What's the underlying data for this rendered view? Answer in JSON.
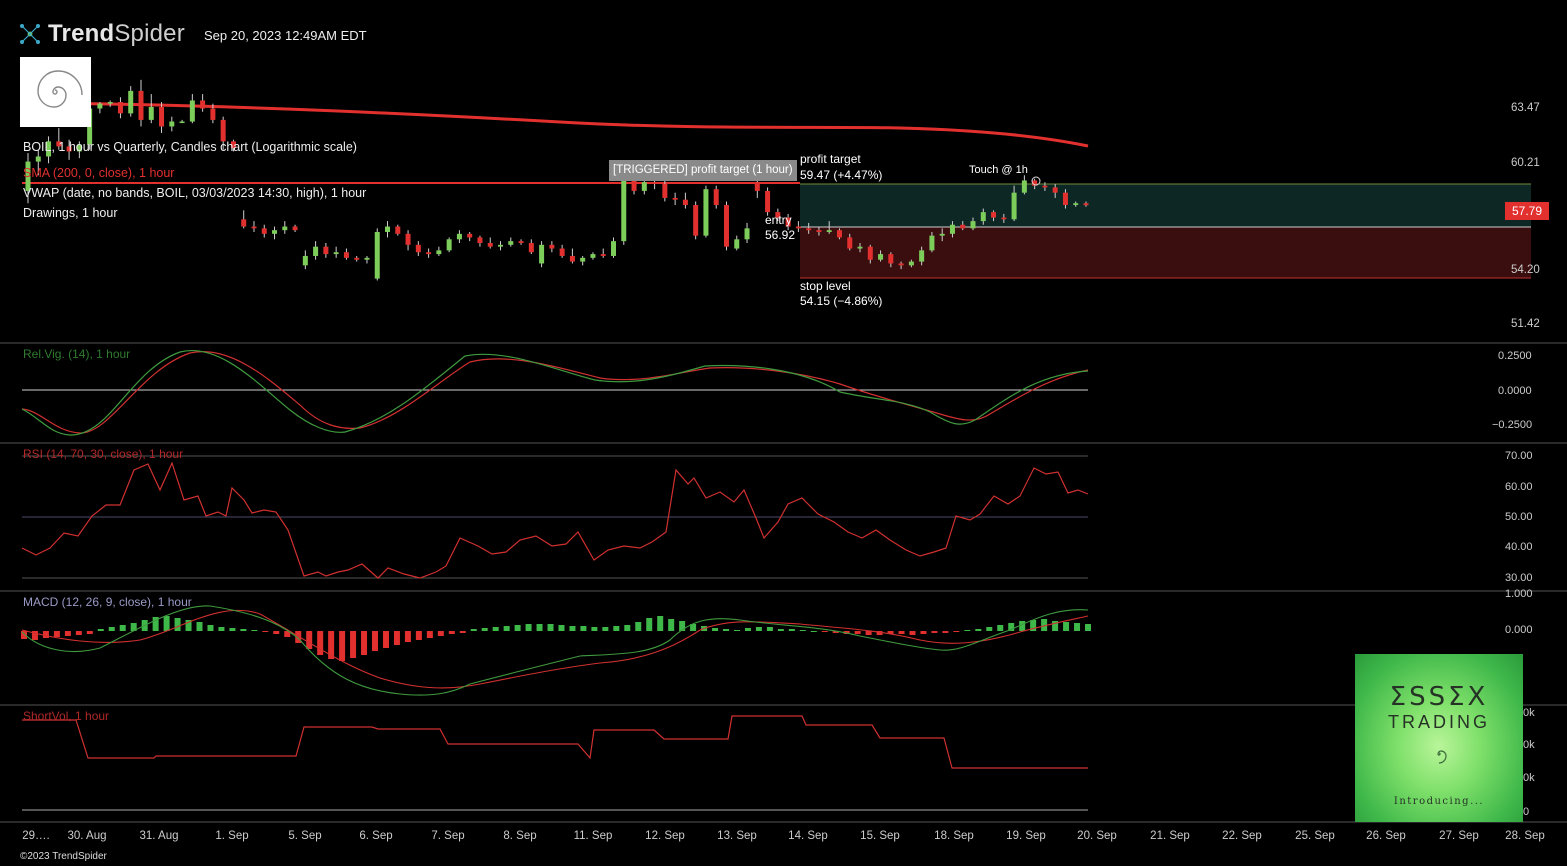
{
  "header": {
    "brand_bold": "Trend",
    "brand_light": "Spider",
    "datetime": "Sep 20, 2023 12:49AM EDT",
    "copyright": "©2023 TrendSpider"
  },
  "legend": {
    "line1": "BOIL, 1 hour vs Quarterly, Candles chart (Logarithmic scale)",
    "line2": "SMA (200, 0, close), 1 hour",
    "line3": "VWAP (date, no bands, BOIL, 03/03/2023 14:30, high), 1 hour",
    "line4": "Drawings, 1 hour"
  },
  "annotations": {
    "triggered": "[TRIGGERED] profit target (1 hour)",
    "profit_label": "profit target",
    "profit_value": "59.47 (+4.47%)",
    "touch": "Touch @ 1h",
    "entry_label": "entry",
    "entry_value": "56.92",
    "stop_label": "stop level",
    "stop_value": "54.15 (−4.86%)",
    "current_price": "57.79"
  },
  "price_axis": [
    "63.47",
    "60.21",
    "54.20",
    "51.42"
  ],
  "indicators": {
    "relvig": {
      "title": "Rel.Vig. (14), 1 hour",
      "ticks": [
        "0.2500",
        "0.0000",
        "−0.2500"
      ]
    },
    "rsi": {
      "title": "RSI (14, 70, 30, close), 1 hour",
      "ticks": [
        "70.00",
        "60.00",
        "50.00",
        "40.00",
        "30.00"
      ]
    },
    "macd": {
      "title": "MACD (12, 26, 9, close), 1 hour",
      "ticks": [
        "1.000",
        "0.000"
      ]
    },
    "shortvol": {
      "title": "ShortVol, 1 hour",
      "ticks": [
        "0k",
        "0k",
        "0k",
        "0"
      ]
    }
  },
  "ad": {
    "title": "ΣSSΣX",
    "subtitle": "TRADING",
    "intro": "Introducing..."
  },
  "colors": {
    "up": "#7ccd5a",
    "down": "#e2302f",
    "sma": "#e2302f",
    "vwap": "#e2302f",
    "profit_zone": "#0c2724",
    "stop_zone": "#3a0d0f",
    "relvig_green": "#3f9a3f",
    "relvig_red": "#d03030",
    "macd_line": "#3f9a3f",
    "signal_line": "#d03030"
  },
  "chart_data": {
    "type": "candlestick",
    "dates": [
      "29….",
      "30. Aug",
      "31. Aug",
      "1. Sep",
      "5. Sep",
      "6. Sep",
      "7. Sep",
      "8. Sep",
      "11. Sep",
      "12. Sep",
      "13. Sep",
      "14. Sep",
      "15. Sep",
      "18. Sep",
      "19. Sep",
      "20. Sep",
      "21. Sep",
      "22. Sep",
      "25. Sep",
      "26. Sep",
      "27. Sep",
      "28. Sep"
    ],
    "price_levels": {
      "profit_target": 59.47,
      "entry": 56.92,
      "stop": 54.15,
      "current": 57.79
    },
    "price_scale": "log",
    "price_ticks": [
      63.47,
      60.21,
      54.2,
      51.42
    ],
    "candles": [
      [
        58.6,
        60.8,
        57.9,
        60.3
      ],
      [
        60.3,
        61.0,
        59.5,
        60.6
      ],
      [
        60.6,
        61.8,
        60.2,
        61.5
      ],
      [
        61.5,
        62.3,
        61.0,
        61.2
      ],
      [
        61.2,
        61.6,
        60.4,
        60.9
      ],
      [
        60.9,
        61.5,
        60.5,
        61.3
      ],
      [
        61.3,
        63.9,
        61.0,
        63.5
      ],
      [
        63.5,
        63.9,
        63.2,
        63.8
      ],
      [
        63.8,
        64.0,
        63.6,
        63.9
      ],
      [
        63.9,
        64.2,
        62.9,
        63.2
      ],
      [
        63.2,
        64.9,
        63.0,
        64.6
      ],
      [
        64.6,
        65.3,
        62.4,
        62.8
      ],
      [
        62.8,
        64.4,
        62.6,
        63.6
      ],
      [
        63.6,
        63.9,
        62.0,
        62.4
      ],
      [
        62.4,
        63.0,
        62.1,
        62.7
      ],
      [
        62.7,
        62.8,
        62.6,
        62.7
      ],
      [
        62.7,
        64.4,
        62.6,
        64.0
      ],
      [
        64.0,
        64.4,
        63.3,
        63.5
      ],
      [
        63.5,
        63.8,
        62.6,
        62.8
      ],
      [
        62.8,
        63.0,
        61.0,
        61.5
      ],
      [
        61.5,
        61.6,
        60.9,
        61.1
      ],
      [
        57.0,
        57.5,
        56.5,
        56.6
      ],
      [
        56.6,
        56.9,
        56.3,
        56.5
      ],
      [
        56.5,
        56.7,
        56.0,
        56.2
      ],
      [
        56.2,
        56.6,
        55.9,
        56.4
      ],
      [
        56.4,
        56.9,
        56.2,
        56.6
      ],
      [
        56.6,
        56.7,
        56.3,
        56.4
      ],
      [
        54.5,
        55.3,
        54.3,
        55.0
      ],
      [
        55.0,
        55.8,
        54.8,
        55.5
      ],
      [
        55.5,
        55.7,
        54.9,
        55.1
      ],
      [
        55.1,
        55.5,
        54.9,
        55.2
      ],
      [
        55.2,
        55.4,
        54.8,
        54.9
      ],
      [
        54.9,
        55.0,
        54.7,
        54.8
      ],
      [
        54.8,
        55.0,
        54.6,
        54.9
      ],
      [
        53.8,
        56.5,
        53.7,
        56.3
      ],
      [
        56.3,
        56.9,
        56.0,
        56.6
      ],
      [
        56.6,
        56.7,
        56.1,
        56.2
      ],
      [
        56.2,
        56.4,
        55.3,
        55.6
      ],
      [
        55.6,
        55.8,
        55.0,
        55.2
      ],
      [
        55.2,
        55.4,
        54.9,
        55.1
      ],
      [
        55.1,
        55.5,
        55.0,
        55.3
      ],
      [
        55.3,
        56.0,
        55.2,
        55.9
      ],
      [
        55.9,
        56.4,
        55.7,
        56.2
      ],
      [
        56.2,
        56.3,
        55.8,
        56.0
      ],
      [
        56.0,
        56.1,
        55.5,
        55.7
      ],
      [
        55.7,
        56.0,
        55.4,
        55.5
      ],
      [
        55.5,
        55.8,
        55.3,
        55.6
      ],
      [
        55.6,
        56.0,
        55.5,
        55.8
      ],
      [
        55.8,
        55.9,
        55.6,
        55.7
      ],
      [
        55.7,
        55.9,
        55.1,
        55.2
      ],
      [
        54.6,
        55.8,
        54.4,
        55.6
      ],
      [
        55.6,
        55.8,
        55.2,
        55.4
      ],
      [
        55.4,
        55.6,
        54.9,
        55.0
      ],
      [
        55.0,
        55.4,
        54.6,
        54.7
      ],
      [
        54.7,
        55.0,
        54.5,
        54.9
      ],
      [
        54.9,
        55.2,
        54.8,
        55.1
      ],
      [
        55.1,
        55.4,
        54.9,
        55.0
      ],
      [
        55.0,
        56.0,
        54.9,
        55.8
      ],
      [
        55.8,
        59.5,
        55.6,
        59.2
      ],
      [
        59.2,
        59.5,
        58.4,
        58.6
      ],
      [
        58.6,
        59.4,
        58.4,
        59.1
      ],
      [
        59.1,
        59.3,
        58.7,
        59.0
      ],
      [
        59.0,
        59.2,
        58.0,
        58.2
      ],
      [
        58.2,
        58.5,
        57.8,
        58.1
      ],
      [
        58.1,
        58.5,
        57.6,
        57.8
      ],
      [
        57.8,
        58.0,
        55.9,
        56.1
      ],
      [
        56.1,
        58.9,
        56.0,
        58.7
      ],
      [
        58.7,
        58.9,
        57.6,
        57.8
      ],
      [
        57.8,
        58.0,
        55.3,
        55.5
      ],
      [
        55.4,
        56.1,
        55.3,
        55.9
      ],
      [
        55.9,
        56.8,
        55.7,
        56.5
      ],
      [
        59.1,
        59.4,
        58.2,
        58.6
      ],
      [
        58.6,
        58.8,
        57.2,
        57.4
      ],
      [
        57.4,
        57.6,
        56.9,
        57.1
      ],
      [
        57.1,
        57.3,
        56.4,
        56.6
      ],
      [
        56.6,
        56.9,
        56.3,
        56.5
      ],
      [
        56.5,
        56.8,
        56.2,
        56.4
      ],
      [
        56.4,
        56.6,
        56.1,
        56.3
      ],
      [
        56.3,
        56.9,
        56.2,
        56.4
      ],
      [
        56.4,
        56.5,
        55.9,
        56.0
      ],
      [
        56.0,
        56.2,
        55.3,
        55.4
      ],
      [
        55.4,
        55.7,
        55.2,
        55.5
      ],
      [
        55.5,
        55.6,
        54.6,
        54.8
      ],
      [
        54.8,
        55.3,
        54.7,
        55.1
      ],
      [
        55.1,
        55.2,
        54.4,
        54.6
      ],
      [
        54.6,
        54.7,
        54.3,
        54.5
      ],
      [
        54.5,
        54.8,
        54.4,
        54.7
      ],
      [
        54.7,
        55.5,
        54.5,
        55.3
      ],
      [
        55.3,
        56.3,
        55.2,
        56.1
      ],
      [
        56.1,
        56.5,
        55.8,
        56.2
      ],
      [
        56.2,
        56.9,
        56.0,
        56.7
      ],
      [
        56.7,
        56.9,
        56.4,
        56.5
      ],
      [
        56.5,
        57.1,
        56.4,
        56.9
      ],
      [
        56.9,
        57.6,
        56.7,
        57.4
      ],
      [
        57.4,
        57.5,
        56.9,
        57.1
      ],
      [
        57.1,
        57.3,
        56.8,
        57.0
      ],
      [
        57.0,
        58.9,
        56.9,
        58.5
      ],
      [
        58.5,
        59.5,
        58.4,
        59.2
      ],
      [
        59.2,
        59.3,
        58.7,
        58.9
      ],
      [
        58.9,
        59.1,
        58.6,
        58.8
      ],
      [
        58.8,
        59.0,
        58.2,
        58.5
      ],
      [
        58.5,
        58.7,
        57.6,
        57.8
      ],
      [
        57.8,
        58.0,
        57.7,
        57.9
      ],
      [
        57.9,
        58.0,
        57.7,
        57.79
      ]
    ]
  }
}
